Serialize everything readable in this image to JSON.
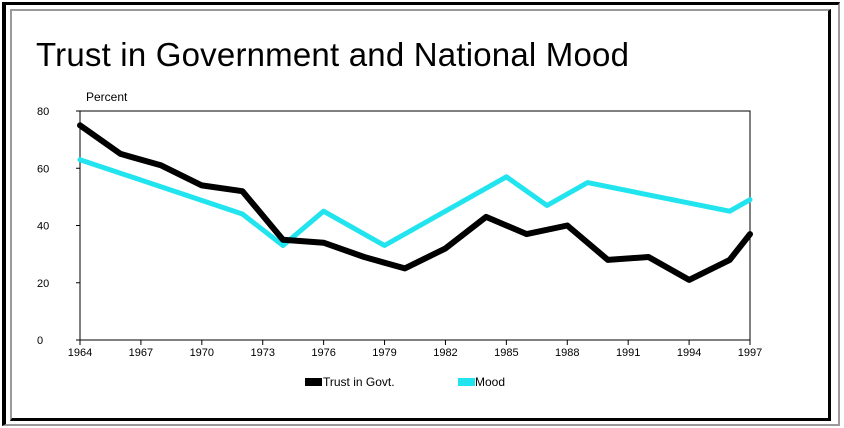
{
  "chart_data": {
    "type": "line",
    "title": "Trust in Government and National Mood",
    "ylabel": "Percent",
    "xlabel": "",
    "xlim": [
      1964,
      1997
    ],
    "ylim": [
      0,
      80
    ],
    "x_ticks": [
      1964,
      1967,
      1970,
      1973,
      1976,
      1979,
      1982,
      1985,
      1988,
      1991,
      1994,
      1997
    ],
    "y_ticks": [
      0,
      20,
      40,
      60,
      80
    ],
    "grid": false,
    "legend_position": "bottom",
    "series": [
      {
        "name": "Trust in Govt.",
        "color": "#000000",
        "points": [
          [
            1964,
            75
          ],
          [
            1966,
            65
          ],
          [
            1968,
            61
          ],
          [
            1970,
            54
          ],
          [
            1972,
            52
          ],
          [
            1974,
            35
          ],
          [
            1976,
            34
          ],
          [
            1978,
            29
          ],
          [
            1980,
            25
          ],
          [
            1982,
            32
          ],
          [
            1984,
            43
          ],
          [
            1986,
            37
          ],
          [
            1988,
            40
          ],
          [
            1990,
            28
          ],
          [
            1992,
            29
          ],
          [
            1994,
            21
          ],
          [
            1996,
            28
          ],
          [
            1997,
            37
          ]
        ]
      },
      {
        "name": "Mood",
        "color": "#22e4ef",
        "points": [
          [
            1964,
            63
          ],
          [
            1972,
            44
          ],
          [
            1974,
            33
          ],
          [
            1976,
            45
          ],
          [
            1979,
            33
          ],
          [
            1985,
            57
          ],
          [
            1987,
            47
          ],
          [
            1989,
            55
          ],
          [
            1996,
            45
          ],
          [
            1997,
            49
          ]
        ]
      }
    ]
  }
}
